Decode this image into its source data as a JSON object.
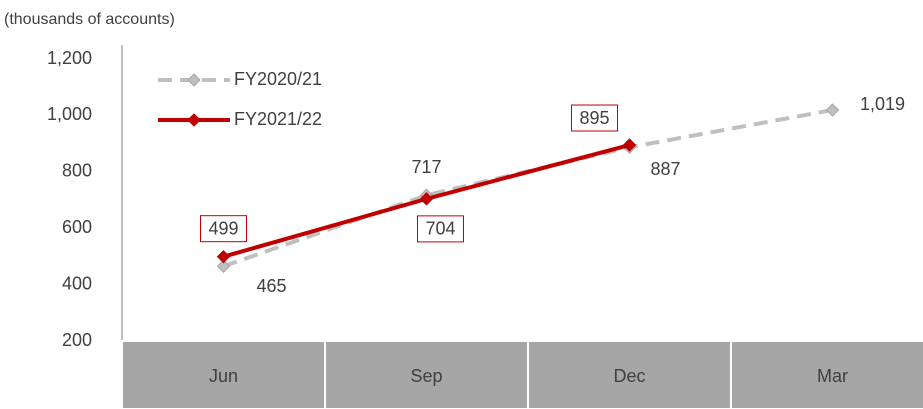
{
  "chart_data": {
    "type": "line",
    "subtitle": "(thousands of accounts)",
    "categories": [
      "Jun",
      "Sep",
      "Dec",
      "Mar"
    ],
    "series": [
      {
        "name": "FY2020/21",
        "color": "#bfbfbf",
        "dashed": true,
        "values": [
          465,
          717,
          887,
          1019
        ],
        "value_labels": [
          "465",
          "717",
          "887",
          "1,019"
        ]
      },
      {
        "name": "FY2021/22",
        "color": "#c00000",
        "dashed": false,
        "boxed_labels": true,
        "values": [
          499,
          704,
          895,
          null
        ]
      }
    ],
    "ylim": [
      200,
      1200
    ],
    "yticks": [
      200,
      400,
      600,
      800,
      {
        "value": 1000,
        "label": "1,000"
      },
      {
        "value": 1200,
        "label": "1,200"
      }
    ],
    "grid": false,
    "legend": "top-left"
  }
}
